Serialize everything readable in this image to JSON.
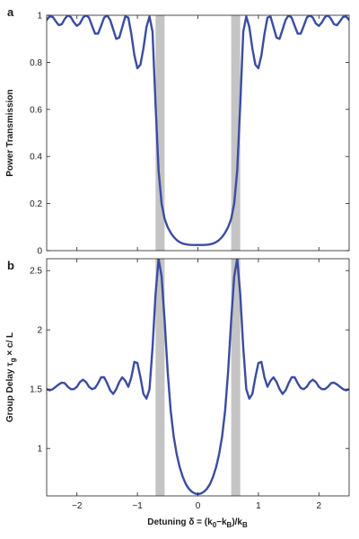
{
  "colors": {
    "curve": "#3b4ca0",
    "shade": "#c4c4c4",
    "axis": "#222222"
  },
  "chart_data": [
    {
      "panel": "a",
      "type": "line",
      "title": "",
      "xlabel": "",
      "ylabel": "Power Transmission",
      "xlim": [
        -2.5,
        2.5
      ],
      "ylim": [
        0,
        1
      ],
      "x_ticks": [
        -2,
        -1,
        0,
        1,
        2
      ],
      "y_ticks": [
        0,
        0.2,
        0.4,
        0.6,
        0.8,
        1
      ],
      "y_tick_labels": [
        "0",
        "0.2",
        "0.4",
        "0.6",
        "0.8",
        "1"
      ],
      "shaded_bands": [
        [
          -0.7,
          -0.55
        ],
        [
          0.55,
          0.7
        ]
      ],
      "grid": false,
      "series": [
        {
          "x": [
            -2.5,
            -2.45,
            -2.4,
            -2.35,
            -2.3,
            -2.25,
            -2.2,
            -2.15,
            -2.1,
            -2.05,
            -2.0,
            -1.95,
            -1.9,
            -1.85,
            -1.8,
            -1.75,
            -1.7,
            -1.65,
            -1.6,
            -1.55,
            -1.5,
            -1.45,
            -1.4,
            -1.35,
            -1.3,
            -1.25,
            -1.2,
            -1.15,
            -1.1,
            -1.05,
            -1.0,
            -0.95,
            -0.9,
            -0.85,
            -0.8,
            -0.75,
            -0.7,
            -0.65,
            -0.6,
            -0.55,
            -0.5,
            -0.45,
            -0.4,
            -0.35,
            -0.3,
            -0.25,
            -0.2,
            -0.15,
            -0.1,
            -0.05,
            0.0,
            0.05,
            0.1,
            0.15,
            0.2,
            0.25,
            0.3,
            0.35,
            0.4,
            0.45,
            0.5,
            0.55,
            0.6,
            0.65,
            0.7,
            0.75,
            0.8,
            0.85,
            0.9,
            0.95,
            1.0,
            1.05,
            1.1,
            1.15,
            1.2,
            1.25,
            1.3,
            1.35,
            1.4,
            1.45,
            1.5,
            1.55,
            1.6,
            1.65,
            1.7,
            1.75,
            1.8,
            1.85,
            1.9,
            1.95,
            2.0,
            2.05,
            2.1,
            2.15,
            2.2,
            2.25,
            2.3,
            2.35,
            2.4,
            2.45,
            2.5
          ],
          "y": [
            0.98,
            0.995,
            0.993,
            0.975,
            0.958,
            0.962,
            0.985,
            1.0,
            0.992,
            0.97,
            0.955,
            0.965,
            0.99,
            1.0,
            0.99,
            0.955,
            0.922,
            0.922,
            0.955,
            0.99,
            1.0,
            0.98,
            0.94,
            0.9,
            0.905,
            0.95,
            0.995,
            0.99,
            0.92,
            0.83,
            0.775,
            0.79,
            0.86,
            0.95,
            0.995,
            0.93,
            0.62,
            0.34,
            0.2,
            0.135,
            0.1,
            0.076,
            0.058,
            0.045,
            0.036,
            0.03,
            0.027,
            0.025,
            0.024,
            0.024,
            0.024,
            0.024,
            0.024,
            0.025,
            0.027,
            0.03,
            0.036,
            0.045,
            0.058,
            0.076,
            0.1,
            0.135,
            0.2,
            0.34,
            0.62,
            0.93,
            0.995,
            0.95,
            0.86,
            0.79,
            0.775,
            0.83,
            0.92,
            0.99,
            0.995,
            0.95,
            0.905,
            0.9,
            0.94,
            0.98,
            1.0,
            0.99,
            0.955,
            0.922,
            0.922,
            0.955,
            0.99,
            1.0,
            0.99,
            0.965,
            0.955,
            0.97,
            0.992,
            1.0,
            0.985,
            0.962,
            0.958,
            0.975,
            0.993,
            0.995,
            0.98
          ]
        }
      ]
    },
    {
      "panel": "b",
      "type": "line",
      "title": "",
      "xlabel": "Detuning δ = (k₀−k_B)/k_B",
      "ylabel": "Group Delay τg × c/ L",
      "xlim": [
        -2.5,
        2.5
      ],
      "ylim": [
        0.6,
        2.6
      ],
      "x_ticks": [
        -2,
        -1,
        0,
        1,
        2
      ],
      "x_tick_labels": [
        "−2",
        "−1",
        "0",
        "1",
        "2"
      ],
      "y_ticks": [
        1,
        1.5,
        2,
        2.5
      ],
      "y_tick_labels": [
        "1",
        "1.5",
        "2",
        "2.5"
      ],
      "shaded_bands": [
        [
          -0.7,
          -0.55
        ],
        [
          0.55,
          0.7
        ]
      ],
      "grid": false,
      "series": [
        {
          "x": [
            -2.5,
            -2.45,
            -2.4,
            -2.35,
            -2.3,
            -2.25,
            -2.2,
            -2.15,
            -2.1,
            -2.05,
            -2.0,
            -1.95,
            -1.9,
            -1.85,
            -1.8,
            -1.75,
            -1.7,
            -1.65,
            -1.6,
            -1.55,
            -1.5,
            -1.45,
            -1.4,
            -1.35,
            -1.3,
            -1.25,
            -1.2,
            -1.15,
            -1.1,
            -1.05,
            -1.0,
            -0.95,
            -0.9,
            -0.85,
            -0.8,
            -0.75,
            -0.7,
            -0.65,
            -0.6,
            -0.55,
            -0.5,
            -0.45,
            -0.4,
            -0.35,
            -0.3,
            -0.25,
            -0.2,
            -0.15,
            -0.1,
            -0.05,
            0.0,
            0.05,
            0.1,
            0.15,
            0.2,
            0.25,
            0.3,
            0.35,
            0.4,
            0.45,
            0.5,
            0.55,
            0.6,
            0.65,
            0.7,
            0.75,
            0.8,
            0.85,
            0.9,
            0.95,
            1.0,
            1.05,
            1.1,
            1.15,
            1.2,
            1.25,
            1.3,
            1.35,
            1.4,
            1.45,
            1.5,
            1.55,
            1.6,
            1.65,
            1.7,
            1.75,
            1.8,
            1.85,
            1.9,
            1.95,
            2.0,
            2.05,
            2.1,
            2.15,
            2.2,
            2.25,
            2.3,
            2.35,
            2.4,
            2.45,
            2.5
          ],
          "y": [
            1.5,
            1.49,
            1.5,
            1.52,
            1.54,
            1.555,
            1.55,
            1.52,
            1.5,
            1.5,
            1.52,
            1.56,
            1.58,
            1.56,
            1.52,
            1.5,
            1.51,
            1.55,
            1.6,
            1.6,
            1.55,
            1.49,
            1.46,
            1.5,
            1.56,
            1.6,
            1.57,
            1.52,
            1.6,
            1.73,
            1.72,
            1.6,
            1.46,
            1.42,
            1.5,
            1.85,
            2.3,
            2.6,
            2.45,
            2.08,
            1.65,
            1.32,
            1.1,
            0.95,
            0.84,
            0.76,
            0.7,
            0.66,
            0.635,
            0.62,
            0.615,
            0.62,
            0.635,
            0.66,
            0.7,
            0.76,
            0.84,
            0.95,
            1.1,
            1.32,
            1.65,
            2.08,
            2.45,
            2.6,
            2.3,
            1.85,
            1.5,
            1.42,
            1.46,
            1.6,
            1.72,
            1.73,
            1.6,
            1.52,
            1.57,
            1.6,
            1.56,
            1.5,
            1.46,
            1.49,
            1.55,
            1.6,
            1.6,
            1.55,
            1.51,
            1.5,
            1.52,
            1.56,
            1.58,
            1.56,
            1.52,
            1.5,
            1.5,
            1.52,
            1.55,
            1.555,
            1.54,
            1.52,
            1.5,
            1.49,
            1.5
          ]
        }
      ]
    }
  ]
}
